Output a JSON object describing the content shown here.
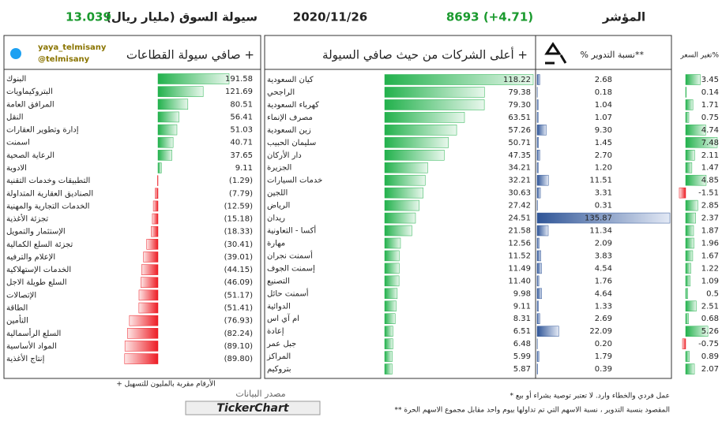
{
  "header": {
    "index_label": "المؤشر",
    "index_value": "8693 (+4.71)",
    "date": "2020/11/26",
    "liquidity_label": "سيولة السوق (مليار ريال)",
    "liquidity_value": "13.039"
  },
  "colors": {
    "positive": "#22b14c",
    "negative": "#ed1c24",
    "turnover": "#2f5597"
  },
  "sectors": {
    "title": "صافي سيولة القطاعات +",
    "twitter_handle": "yaya_telmisany",
    "twitter_at": "@telmisany",
    "note": "+ الأرقام مقربة بالمليون للتسهيل",
    "source_label": "مصدر البيانات",
    "source_name": "TickerChart",
    "categories": [
      "البنوك",
      "البتروكيماويات",
      "المرافق العامة",
      "النقل",
      "إدارة وتطوير العقارات",
      "اسمنت",
      "الرعاية الصحية",
      "الادوية",
      "التطبيقات وخدمات التقنية",
      "الصناديق العقارية المتداولة",
      "الخدمات التجارية والمهنية",
      "تجزئة الأغذية",
      "الإستثمار والتمويل",
      "تجزئة السلع الكمالية",
      "الإعلام والترفيه",
      "الخدمات الإستهلاكية",
      "السلع طويلة الاجل",
      "الإتصالات",
      "الطاقة",
      "التأمين",
      "السلع الرأسمالية",
      "المواد الأساسية",
      "إنتاج الأغذية"
    ],
    "values": [
      191.58,
      121.69,
      80.51,
      56.41,
      51.03,
      40.71,
      37.65,
      9.11,
      -1.29,
      -7.79,
      -12.59,
      -15.18,
      -18.33,
      -30.41,
      -39.01,
      -44.15,
      -46.09,
      -51.17,
      -51.41,
      -76.93,
      -82.24,
      -89.1,
      -89.8
    ],
    "value_labels": [
      "191.58",
      "121.69",
      "80.51",
      "56.41",
      "51.03",
      "40.71",
      "37.65",
      "9.11",
      "(1.29)",
      "(7.79)",
      "(12.59)",
      "(15.18)",
      "(18.33)",
      "(30.41)",
      "(39.01)",
      "(44.15)",
      "(46.09)",
      "(51.17)",
      "(51.41)",
      "(76.93)",
      "(82.24)",
      "(89.10)",
      "(89.80)"
    ]
  },
  "companies": {
    "title": "أعلى الشركات من حيث صافي السيولة +",
    "turnover_label": "% نسبة التدوير**",
    "price_change_label": "تغير السعر%",
    "names": [
      "كيان السعودية",
      "الراجحي",
      "كهرباء السعودية",
      "مصرف الإنماء",
      "زين السعودية",
      "سليمان الحبيب",
      "دار الأركان",
      "الجزيرة",
      "خدمات السيارات",
      "اللجين",
      "الرياض",
      "ريدان",
      "أكسا - التعاونية",
      "مهارة",
      "أسمنت نجران",
      "إسمنت الجوف",
      "التصنيع",
      "أسمنت حائل",
      "الدوائية",
      "ام آي اس",
      "إعادة",
      "جبل عمر",
      "المراكز",
      "بتروكيم"
    ],
    "net_liquidity": [
      118.22,
      79.38,
      79.3,
      63.51,
      57.26,
      50.71,
      47.35,
      34.21,
      32.21,
      30.63,
      27.42,
      24.51,
      21.58,
      12.56,
      11.52,
      11.49,
      11.4,
      9.98,
      9.11,
      8.31,
      6.51,
      6.48,
      5.99,
      5.87
    ],
    "net_liquidity_labels": [
      "118.22",
      "79.38",
      "79.30",
      "63.51",
      "57.26",
      "50.71",
      "47.35",
      "34.21",
      "32.21",
      "30.63",
      "27.42",
      "24.51",
      "21.58",
      "12.56",
      "11.52",
      "11.49",
      "11.40",
      "9.98",
      "9.11",
      "8.31",
      "6.51",
      "6.48",
      "5.99",
      "5.87"
    ],
    "turnover": [
      2.68,
      0.18,
      1.04,
      1.07,
      9.3,
      1.45,
      2.7,
      1.2,
      11.51,
      3.31,
      0.31,
      135.87,
      11.34,
      2.09,
      3.83,
      4.54,
      1.76,
      4.64,
      1.33,
      2.69,
      22.09,
      0.2,
      1.79,
      0.39
    ],
    "turnover_labels": [
      "2.68",
      "0.18",
      "1.04",
      "1.07",
      "9.30",
      "1.45",
      "2.70",
      "1.20",
      "11.51",
      "3.31",
      "0.31",
      "135.87",
      "11.34",
      "2.09",
      "3.83",
      "4.54",
      "1.76",
      "4.64",
      "1.33",
      "2.69",
      "22.09",
      "0.20",
      "1.79",
      "0.39"
    ],
    "price_change": [
      3.45,
      0.14,
      1.71,
      0.75,
      4.74,
      7.48,
      2.11,
      1.47,
      4.85,
      -1.51,
      2.85,
      2.37,
      1.87,
      1.96,
      1.67,
      1.22,
      1.09,
      0.5,
      2.51,
      0.68,
      5.26,
      -0.75,
      0.89,
      2.07
    ]
  },
  "footnotes": [
    "* عمل فردي والخطاء وارد. لا تعتبر توصية بشراء أو بيع",
    "** المقصود بنسبة التدوير ، نسبة الاسهم التي تم تداولها بيوم واحد مقابل مجموع الاسهم الحرة"
  ]
}
